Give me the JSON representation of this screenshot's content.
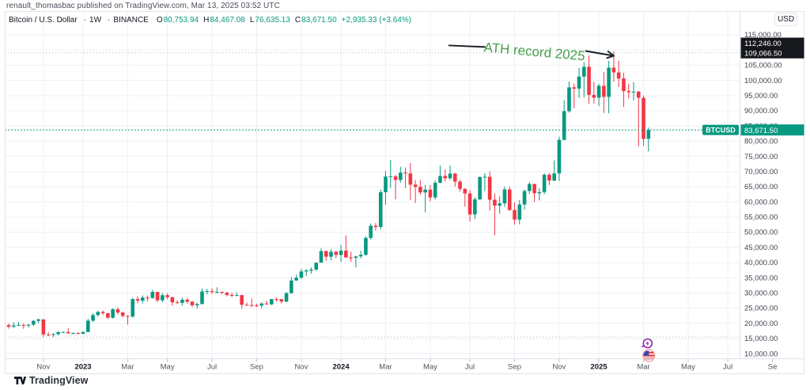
{
  "header": {
    "attribution": "renault_thomasbac published on TradingView.com, Mar 13, 2025 03:52 UTC"
  },
  "legend": {
    "symbol": "Bitcoin / U.S. Dollar",
    "separator": "·",
    "interval": "1W",
    "exchange": "BINANCE",
    "ohlc": {
      "o_label": "O",
      "o": "80,753.94",
      "h_label": "H",
      "h": "84,467.08",
      "l_label": "L",
      "l": "76,635.13",
      "c_label": "C",
      "c": "83,671.50",
      "change": "+2,935.33 (+3.64%)"
    }
  },
  "price_axis": {
    "currency_button": "USD",
    "drawing_labels": [
      "112,246.00",
      "109,066.50"
    ],
    "last_price_label": "83,671.50",
    "symbol_badge": "BTCUSD"
  },
  "footer": {
    "brand": "TradingView"
  },
  "colors": {
    "up": "#089981",
    "down": "#F23645",
    "last_price": "#089981",
    "badge_dark": "#16181d",
    "annotation_green": "#48a14d",
    "drawing_black": "#1b1f27",
    "grid": "#eef0f4",
    "frame": "#e0e3eb",
    "axis_text": "#434651"
  },
  "chart_data": {
    "type": "candlestick",
    "title": "Bitcoin / U.S. Dollar",
    "symbol": "BTCUSD",
    "exchange": "BINANCE",
    "interval": "1W",
    "start_date": "2022-09-12",
    "ylim": [
      10000,
      115000
    ],
    "y_tick_step": 5000,
    "grid": true,
    "last_price": 83671.5,
    "high_dotted_line": 109066.5,
    "low_dotted_line": 15480,
    "x_ticks": [
      {
        "label": "Nov",
        "week": 8
      },
      {
        "label": "2023",
        "week": 16
      },
      {
        "label": "Mar",
        "week": 25
      },
      {
        "label": "May",
        "week": 33
      },
      {
        "label": "Jul",
        "week": 42
      },
      {
        "label": "Sep",
        "week": 51
      },
      {
        "label": "Nov",
        "week": 60
      },
      {
        "label": "2024",
        "week": 68
      },
      {
        "label": "Mar",
        "week": 77
      },
      {
        "label": "May",
        "week": 86
      },
      {
        "label": "Jul",
        "week": 94
      },
      {
        "label": "Sep",
        "week": 103
      },
      {
        "label": "Nov",
        "week": 112
      },
      {
        "label": "2025",
        "week": 120
      },
      {
        "label": "Mar",
        "week": 129
      },
      {
        "label": "May",
        "week": 138
      },
      {
        "label": "Jul",
        "week": 146
      },
      {
        "label": "Se",
        "week": 155
      }
    ],
    "drawings": {
      "trend_line": {
        "from_week": 89.8,
        "from_price": 111500,
        "to_week": 97,
        "to_price": 111000,
        "label_price": 112246.0
      },
      "arrow": {
        "from_week": 117.4,
        "from_price": 109650,
        "to_week": 123,
        "to_price": 108100,
        "label_price": 109066.5
      },
      "text": {
        "content": "ATH record 2025",
        "week": 107,
        "price": 109300,
        "rotation_deg": 5
      }
    },
    "events": [
      {
        "week": 130,
        "type": "flash-event-purple"
      },
      {
        "week": 130,
        "type": "us-flag-event"
      }
    ],
    "weeks_ohlc": [
      [
        21770,
        22799,
        19320,
        19418
      ],
      [
        19418,
        19950,
        18250,
        18920
      ],
      [
        18920,
        20390,
        18470,
        19310
      ],
      [
        19310,
        20480,
        19150,
        19440
      ],
      [
        19440,
        19950,
        18190,
        19270
      ],
      [
        19270,
        19710,
        18650,
        19570
      ],
      [
        19570,
        21080,
        19170,
        20810
      ],
      [
        20810,
        21480,
        20050,
        21300
      ],
      [
        21300,
        21350,
        15480,
        16330
      ],
      [
        16330,
        17130,
        15770,
        16270
      ],
      [
        16270,
        16710,
        15490,
        16460
      ],
      [
        16460,
        17420,
        16000,
        17100
      ],
      [
        17100,
        17360,
        16790,
        17130
      ],
      [
        17130,
        18390,
        16530,
        16740
      ],
      [
        16740,
        16960,
        16400,
        16830
      ],
      [
        16830,
        16990,
        16330,
        16540
      ],
      [
        16540,
        17400,
        16490,
        17130
      ],
      [
        17130,
        21470,
        17120,
        20880
      ],
      [
        20880,
        23370,
        20370,
        22720
      ],
      [
        22720,
        24170,
        22290,
        23750
      ],
      [
        23750,
        24250,
        22720,
        23330
      ],
      [
        23330,
        23450,
        21410,
        21860
      ],
      [
        21860,
        25020,
        21530,
        24630
      ],
      [
        24630,
        25310,
        22850,
        23560
      ],
      [
        23560,
        23920,
        22000,
        22430
      ],
      [
        22430,
        22660,
        19570,
        22220
      ],
      [
        22220,
        28390,
        21880,
        27970
      ],
      [
        27970,
        28870,
        26580,
        27490
      ],
      [
        27490,
        29180,
        26510,
        28480
      ],
      [
        28480,
        29120,
        27250,
        28340
      ],
      [
        28340,
        31000,
        28130,
        30320
      ],
      [
        30320,
        30420,
        27000,
        27590
      ],
      [
        27590,
        29970,
        26950,
        29250
      ],
      [
        29250,
        29880,
        27930,
        28620
      ],
      [
        28620,
        28680,
        25810,
        26930
      ],
      [
        26930,
        27670,
        26360,
        26750
      ],
      [
        26750,
        28460,
        25870,
        27750
      ],
      [
        27750,
        28320,
        26480,
        27120
      ],
      [
        27120,
        27420,
        25370,
        25930
      ],
      [
        25930,
        26780,
        24800,
        26330
      ],
      [
        26330,
        31430,
        26270,
        30480
      ],
      [
        30480,
        31280,
        29500,
        30620
      ],
      [
        30620,
        31550,
        29730,
        30290
      ],
      [
        30290,
        31850,
        29950,
        30330
      ],
      [
        30330,
        30450,
        29600,
        30080
      ],
      [
        30080,
        30340,
        28890,
        29350
      ],
      [
        29350,
        30050,
        28590,
        29050
      ],
      [
        29050,
        30220,
        28950,
        29280
      ],
      [
        29280,
        29450,
        24800,
        26100
      ],
      [
        26100,
        26820,
        25780,
        26010
      ],
      [
        26010,
        28140,
        25340,
        25870
      ],
      [
        25870,
        26410,
        25350,
        25830
      ],
      [
        25830,
        26880,
        24900,
        26530
      ],
      [
        26530,
        27480,
        26100,
        26250
      ],
      [
        26250,
        28050,
        26010,
        27970
      ],
      [
        27970,
        28580,
        27160,
        27920
      ],
      [
        27920,
        27990,
        26540,
        27160
      ],
      [
        27160,
        30330,
        26960,
        29920
      ],
      [
        29920,
        35280,
        29770,
        34090
      ],
      [
        34090,
        35990,
        34030,
        35010
      ],
      [
        35010,
        37980,
        34740,
        37060
      ],
      [
        37060,
        37930,
        35550,
        37390
      ],
      [
        37390,
        38420,
        36400,
        37710
      ],
      [
        37710,
        40010,
        37250,
        39970
      ],
      [
        39970,
        44700,
        39950,
        43790
      ],
      [
        43790,
        43990,
        40530,
        41920
      ],
      [
        41920,
        44400,
        40800,
        43560
      ],
      [
        43560,
        43800,
        41470,
        42520
      ],
      [
        42520,
        45880,
        40220,
        43940
      ],
      [
        43940,
        48970,
        41500,
        41700
      ],
      [
        41700,
        43580,
        40280,
        41580
      ],
      [
        41580,
        42250,
        38500,
        42030
      ],
      [
        42030,
        43880,
        41390,
        42560
      ],
      [
        42560,
        48590,
        42220,
        48120
      ],
      [
        48120,
        52890,
        47570,
        52120
      ],
      [
        52120,
        53020,
        50520,
        51730
      ],
      [
        51730,
        63990,
        50930,
        63170
      ],
      [
        63170,
        70180,
        59010,
        68330
      ],
      [
        68330,
        73780,
        64550,
        68390
      ],
      [
        68390,
        68910,
        60780,
        67210
      ],
      [
        67210,
        71560,
        66350,
        69640
      ],
      [
        69640,
        71290,
        64500,
        69360
      ],
      [
        69360,
        72800,
        60660,
        65660
      ],
      [
        65660,
        67110,
        59600,
        64940
      ],
      [
        64940,
        67200,
        62420,
        63110
      ],
      [
        63110,
        65500,
        56550,
        64030
      ],
      [
        64030,
        65510,
        60170,
        61450
      ],
      [
        61450,
        67040,
        60790,
        66280
      ],
      [
        66280,
        71950,
        66100,
        68520
      ],
      [
        68520,
        70630,
        66660,
        67760
      ],
      [
        67760,
        71910,
        67200,
        69310
      ],
      [
        69310,
        69540,
        65050,
        66670
      ],
      [
        66670,
        67290,
        63400,
        64260
      ],
      [
        64260,
        64520,
        58410,
        62770
      ],
      [
        62770,
        63830,
        53500,
        55850
      ],
      [
        55850,
        61580,
        54260,
        60830
      ],
      [
        60830,
        68380,
        60600,
        68160
      ],
      [
        68160,
        69400,
        63460,
        68250
      ],
      [
        68250,
        70080,
        57120,
        60690
      ],
      [
        60690,
        62740,
        49000,
        58720
      ],
      [
        58720,
        61840,
        56080,
        59490
      ],
      [
        59490,
        64950,
        58440,
        64090
      ],
      [
        64090,
        65050,
        57110,
        57300
      ],
      [
        57300,
        59820,
        52530,
        54160
      ],
      [
        54160,
        60620,
        52590,
        59130
      ],
      [
        59130,
        64090,
        57490,
        63580
      ],
      [
        63580,
        66480,
        62540,
        65880
      ],
      [
        65880,
        65990,
        59960,
        62820
      ],
      [
        62820,
        64480,
        60470,
        63210
      ],
      [
        63210,
        69390,
        62520,
        68920
      ],
      [
        68920,
        69520,
        65530,
        67010
      ],
      [
        67010,
        73620,
        66810,
        69360
      ],
      [
        69360,
        81480,
        66830,
        80430
      ],
      [
        80430,
        93480,
        80220,
        89860
      ],
      [
        89860,
        99650,
        89380,
        97700
      ],
      [
        97700,
        98940,
        90790,
        97280
      ],
      [
        97280,
        104090,
        94150,
        101240
      ],
      [
        101240,
        106000,
        94340,
        104470
      ],
      [
        104470,
        108260,
        92230,
        95190
      ],
      [
        95190,
        99500,
        92360,
        94300
      ],
      [
        94300,
        98850,
        91530,
        98210
      ],
      [
        98210,
        102720,
        89260,
        94570
      ],
      [
        94570,
        106450,
        89160,
        104180
      ],
      [
        104180,
        109590,
        99530,
        102600
      ],
      [
        102600,
        106500,
        97780,
        100630
      ],
      [
        100630,
        102540,
        91230,
        96490
      ],
      [
        96490,
        98870,
        94050,
        96120
      ],
      [
        96120,
        99480,
        93350,
        96280
      ],
      [
        96280,
        96550,
        78260,
        94270
      ],
      [
        94270,
        95000,
        78500,
        80710
      ],
      [
        80754,
        84467,
        76635,
        83672
      ]
    ]
  }
}
